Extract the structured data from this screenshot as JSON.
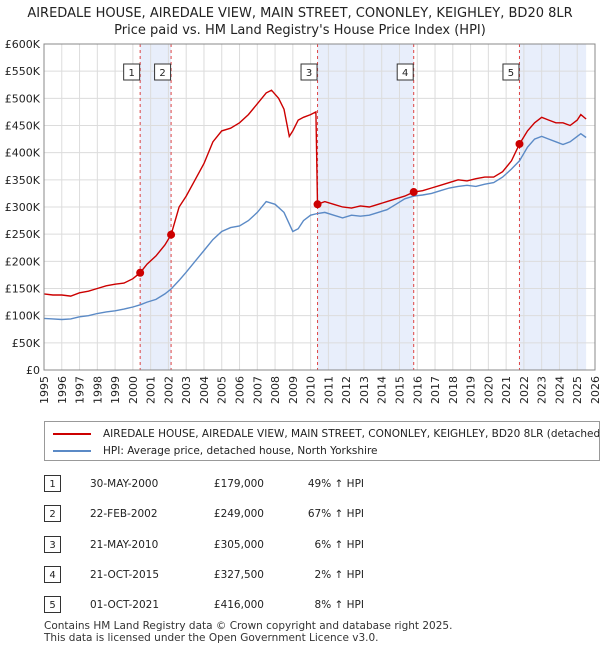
{
  "title_line1": "AIREDALE HOUSE, AIREDALE VIEW, MAIN STREET, CONONLEY, KEIGHLEY, BD20 8LR",
  "title_line2": "Price paid vs. HM Land Registry's House Price Index (HPI)",
  "chart_data": {
    "type": "line",
    "title": "Price paid vs. HM Land Registry's House Price Index (HPI)",
    "xlabel": "",
    "ylabel": "",
    "xlim": [
      1995,
      2026
    ],
    "ylim": [
      0,
      600000
    ],
    "x_ticks": [
      1995,
      1996,
      1997,
      1998,
      1999,
      2000,
      2001,
      2002,
      2003,
      2004,
      2005,
      2006,
      2007,
      2008,
      2009,
      2010,
      2011,
      2012,
      2013,
      2014,
      2015,
      2016,
      2017,
      2018,
      2019,
      2020,
      2021,
      2022,
      2023,
      2024,
      2025,
      2026
    ],
    "y_ticks": [
      {
        "value": 0,
        "label": "£0"
      },
      {
        "value": 50000,
        "label": "£50K"
      },
      {
        "value": 100000,
        "label": "£100K"
      },
      {
        "value": 150000,
        "label": "£150K"
      },
      {
        "value": 200000,
        "label": "£200K"
      },
      {
        "value": 250000,
        "label": "£250K"
      },
      {
        "value": 300000,
        "label": "£300K"
      },
      {
        "value": 350000,
        "label": "£350K"
      },
      {
        "value": 400000,
        "label": "£400K"
      },
      {
        "value": 450000,
        "label": "£450K"
      },
      {
        "value": 500000,
        "label": "£500K"
      },
      {
        "value": 550000,
        "label": "£550K"
      },
      {
        "value": 600000,
        "label": "£600K"
      }
    ],
    "grid": true,
    "shaded_periods": [
      [
        2000.41,
        2002.15
      ],
      [
        2010.39,
        2015.8
      ],
      [
        2021.75,
        2025.5
      ]
    ],
    "series": [
      {
        "name": "AIREDALE HOUSE, AIREDALE VIEW, MAIN STREET, CONONLEY, KEIGHLEY, BD20 8LR (detached",
        "color": "#cc0000",
        "x": [
          1995.0,
          1995.5,
          1996.0,
          1996.5,
          1997.0,
          1997.5,
          1998.0,
          1998.5,
          1999.0,
          1999.5,
          2000.0,
          2000.41,
          2000.8,
          2001.3,
          2001.8,
          2002.15,
          2002.6,
          2003.0,
          2003.5,
          2004.0,
          2004.5,
          2005.0,
          2005.5,
          2006.0,
          2006.5,
          2007.0,
          2007.5,
          2007.8,
          2008.2,
          2008.5,
          2008.8,
          2009.0,
          2009.3,
          2009.6,
          2010.0,
          2010.3,
          2010.39,
          2010.8,
          2011.3,
          2011.8,
          2012.3,
          2012.8,
          2013.3,
          2013.8,
          2014.3,
          2014.8,
          2015.3,
          2015.8,
          2016.3,
          2016.8,
          2017.3,
          2017.8,
          2018.3,
          2018.8,
          2019.3,
          2019.8,
          2020.3,
          2020.8,
          2021.3,
          2021.75,
          2022.2,
          2022.6,
          2023.0,
          2023.4,
          2023.8,
          2024.2,
          2024.6,
          2025.0,
          2025.2,
          2025.5
        ],
        "values": [
          140000,
          138000,
          138000,
          136000,
          142000,
          145000,
          150000,
          155000,
          158000,
          160000,
          168000,
          179000,
          195000,
          210000,
          230000,
          249000,
          300000,
          320000,
          350000,
          380000,
          420000,
          440000,
          445000,
          455000,
          470000,
          490000,
          510000,
          515000,
          500000,
          480000,
          430000,
          440000,
          460000,
          465000,
          470000,
          475000,
          305000,
          310000,
          305000,
          300000,
          298000,
          302000,
          300000,
          305000,
          310000,
          315000,
          320000,
          327500,
          330000,
          335000,
          340000,
          345000,
          350000,
          348000,
          352000,
          355000,
          355000,
          365000,
          385000,
          416000,
          440000,
          455000,
          465000,
          460000,
          455000,
          455000,
          450000,
          460000,
          470000,
          462000
        ]
      },
      {
        "name": "HPI: Average price, detached house, North Yorkshire",
        "color": "#5b8ac6",
        "x": [
          1995.0,
          1995.5,
          1996.0,
          1996.5,
          1997.0,
          1997.5,
          1998.0,
          1998.5,
          1999.0,
          1999.5,
          2000.0,
          2000.41,
          2000.8,
          2001.3,
          2001.8,
          2002.15,
          2002.6,
          2003.0,
          2003.5,
          2004.0,
          2004.5,
          2005.0,
          2005.5,
          2006.0,
          2006.5,
          2007.0,
          2007.5,
          2008.0,
          2008.5,
          2009.0,
          2009.3,
          2009.6,
          2010.0,
          2010.39,
          2010.8,
          2011.3,
          2011.8,
          2012.3,
          2012.8,
          2013.3,
          2013.8,
          2014.3,
          2014.8,
          2015.3,
          2015.8,
          2016.3,
          2016.8,
          2017.3,
          2017.8,
          2018.3,
          2018.8,
          2019.3,
          2019.8,
          2020.3,
          2020.8,
          2021.3,
          2021.75,
          2022.2,
          2022.6,
          2023.0,
          2023.4,
          2023.8,
          2024.2,
          2024.6,
          2025.0,
          2025.2,
          2025.5
        ],
        "values": [
          95000,
          94000,
          93000,
          94000,
          98000,
          100000,
          104000,
          107000,
          109000,
          112000,
          116000,
          120000,
          125000,
          130000,
          140000,
          149000,
          165000,
          180000,
          200000,
          220000,
          240000,
          255000,
          262000,
          265000,
          275000,
          290000,
          310000,
          305000,
          290000,
          255000,
          260000,
          275000,
          285000,
          288000,
          290000,
          285000,
          280000,
          285000,
          283000,
          285000,
          290000,
          295000,
          305000,
          315000,
          320000,
          322000,
          325000,
          330000,
          335000,
          338000,
          340000,
          338000,
          342000,
          345000,
          355000,
          370000,
          385000,
          410000,
          425000,
          430000,
          425000,
          420000,
          415000,
          420000,
          430000,
          435000,
          428000
        ]
      }
    ],
    "sale_markers": [
      {
        "id": "1",
        "x": 2000.41,
        "y": 179000
      },
      {
        "id": "2",
        "x": 2002.15,
        "y": 249000
      },
      {
        "id": "3",
        "x": 2010.39,
        "y": 305000
      },
      {
        "id": "4",
        "x": 2015.8,
        "y": 327500
      },
      {
        "id": "5",
        "x": 2021.75,
        "y": 416000
      }
    ],
    "marker_color": "#cc0000",
    "shade_color": "#e8eefb",
    "vline_color": "#dd4444"
  },
  "legend": {
    "price_label": "AIREDALE HOUSE, AIREDALE VIEW, MAIN STREET, CONONLEY, KEIGHLEY, BD20 8LR (detached",
    "hpi_label": "HPI: Average price, detached house, North Yorkshire"
  },
  "sales": [
    {
      "num": "1",
      "date": "30-MAY-2000",
      "price": "£179,000",
      "hpi": "49% ↑ HPI"
    },
    {
      "num": "2",
      "date": "22-FEB-2002",
      "price": "£249,000",
      "hpi": "67% ↑ HPI"
    },
    {
      "num": "3",
      "date": "21-MAY-2010",
      "price": "£305,000",
      "hpi": "6% ↑ HPI"
    },
    {
      "num": "4",
      "date": "21-OCT-2015",
      "price": "£327,500",
      "hpi": "2% ↑ HPI"
    },
    {
      "num": "5",
      "date": "01-OCT-2021",
      "price": "£416,000",
      "hpi": "8% ↑ HPI"
    }
  ],
  "footer": {
    "line1": "Contains HM Land Registry data © Crown copyright and database right 2025.",
    "line2": "This data is licensed under the Open Government Licence v3.0."
  }
}
